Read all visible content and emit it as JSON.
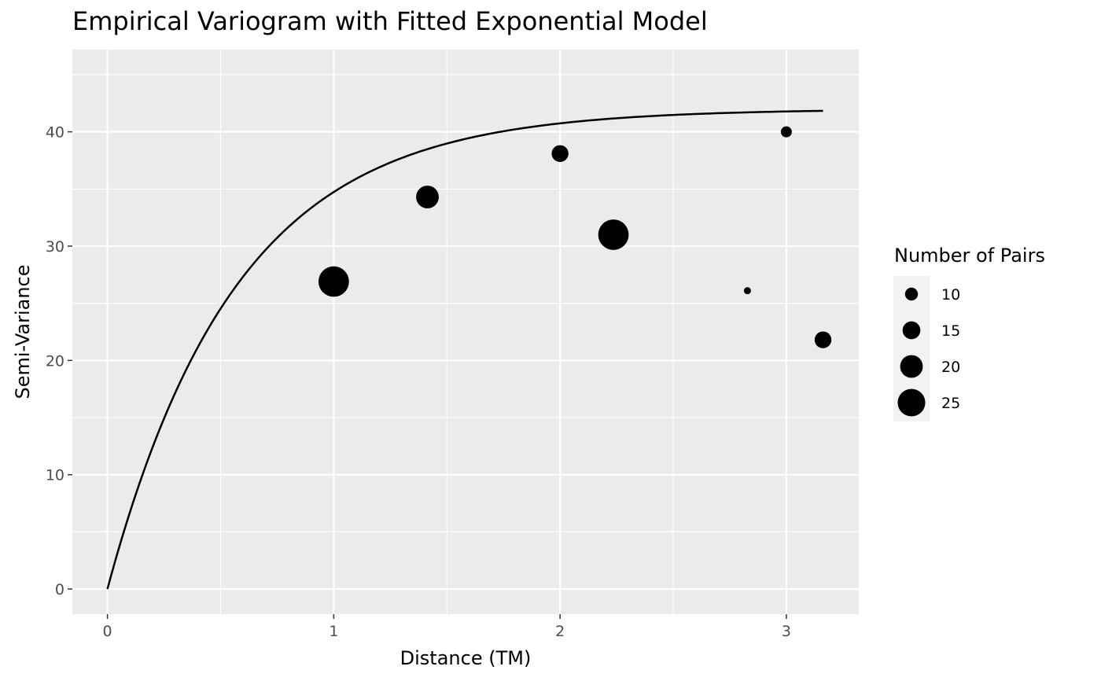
{
  "chart_data": {
    "type": "scatter",
    "title": "Empirical Variogram with Fitted Exponential Model",
    "xlabel": "Distance (TM)",
    "ylabel": "Semi-Variance",
    "xlim": [
      -0.155,
      3.32
    ],
    "ylim": [
      -2.2,
      47.2
    ],
    "x_ticks": [
      0,
      1,
      2,
      3
    ],
    "y_ticks": [
      0,
      10,
      20,
      30,
      40
    ],
    "grid": true,
    "background": "#ebebeb",
    "points": [
      {
        "x": 1.0,
        "y": 26.9,
        "np": 28
      },
      {
        "x": 1.414,
        "y": 34.3,
        "np": 20
      },
      {
        "x": 2.0,
        "y": 38.1,
        "np": 14
      },
      {
        "x": 2.236,
        "y": 31.0,
        "np": 28
      },
      {
        "x": 2.828,
        "y": 26.1,
        "np": 4
      },
      {
        "x": 3.0,
        "y": 40.0,
        "np": 8
      },
      {
        "x": 3.162,
        "y": 21.8,
        "np": 14
      }
    ],
    "model": {
      "type": "exponential",
      "nugget": 0,
      "sill": 42.0,
      "range": 0.57,
      "x_max": 3.162
    },
    "legend": {
      "title": "Number of Pairs",
      "entries": [
        {
          "label": "10",
          "np": 10
        },
        {
          "label": "15",
          "np": 15
        },
        {
          "label": "20",
          "np": 20
        },
        {
          "label": "25",
          "np": 25
        }
      ]
    }
  }
}
